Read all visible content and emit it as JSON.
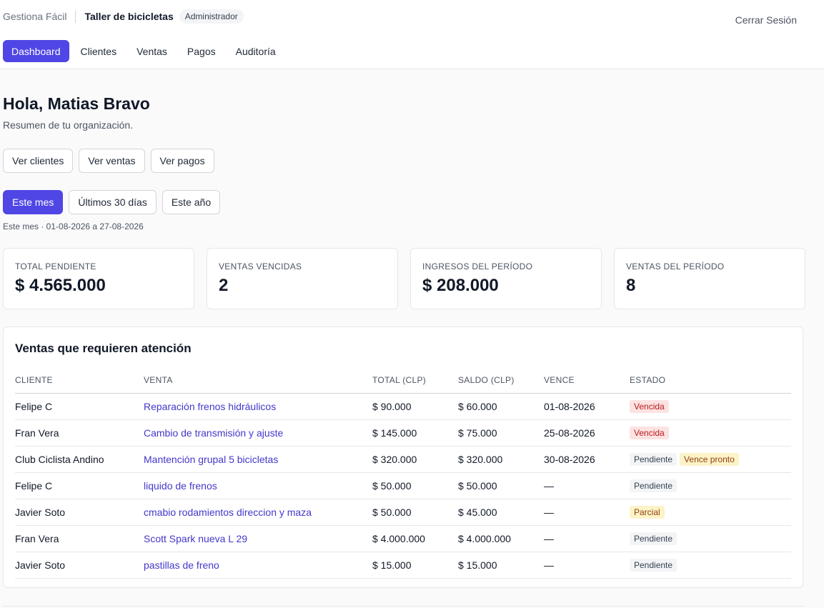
{
  "header": {
    "app_name": "Gestiona Fácil",
    "org_name": "Taller de bicicletas",
    "role": "Administrador",
    "logout": "Cerrar Sesión"
  },
  "nav": {
    "items": [
      {
        "label": "Dashboard",
        "active": true
      },
      {
        "label": "Clientes",
        "active": false
      },
      {
        "label": "Ventas",
        "active": false
      },
      {
        "label": "Pagos",
        "active": false
      },
      {
        "label": "Auditoría",
        "active": false
      }
    ]
  },
  "main": {
    "greeting": "Hola, Matias Bravo",
    "subtitle": "Resumen de tu organización.",
    "quick_links": [
      "Ver clientes",
      "Ver ventas",
      "Ver pagos"
    ],
    "periods": [
      "Este mes",
      "Últimos 30 días",
      "Este año"
    ],
    "selected_period": "Este mes",
    "period_caption": "Este mes · 01-08-2026 a 27-08-2026"
  },
  "kpis": [
    {
      "label": "TOTAL PENDIENTE",
      "value": "$ 4.565.000"
    },
    {
      "label": "VENTAS VENCIDAS",
      "value": "2"
    },
    {
      "label": "INGRESOS DEL PERÍODO",
      "value": "$ 208.000"
    },
    {
      "label": "VENTAS DEL PERÍODO",
      "value": "8"
    }
  ],
  "attention": {
    "title": "Ventas que requieren atención",
    "columns": [
      "CLIENTE",
      "VENTA",
      "TOTAL (CLP)",
      "SALDO (CLP)",
      "VENCE",
      "ESTADO"
    ],
    "rows": [
      {
        "client": "Felipe C",
        "sale": "Reparación frenos hidráulicos",
        "total": "$ 90.000",
        "balance": "$ 60.000",
        "due": "01-08-2026",
        "status": "Vencida",
        "extra": ""
      },
      {
        "client": "Fran Vera",
        "sale": "Cambio de transmisión y ajuste",
        "total": "$ 145.000",
        "balance": "$ 75.000",
        "due": "25-08-2026",
        "status": "Vencida",
        "extra": ""
      },
      {
        "client": "Club Ciclista Andino",
        "sale": "Mantención grupal 5 bicicletas",
        "total": "$ 320.000",
        "balance": "$ 320.000",
        "due": "30-08-2026",
        "status": "Pendiente",
        "extra": "Vence pronto"
      },
      {
        "client": "Felipe C",
        "sale": "liquido de frenos",
        "total": "$ 50.000",
        "balance": "$ 50.000",
        "due": "—",
        "status": "Pendiente",
        "extra": ""
      },
      {
        "client": "Javier Soto",
        "sale": "cmabio rodamientos direccion y maza",
        "total": "$ 50.000",
        "balance": "$ 45.000",
        "due": "—",
        "status": "Parcial",
        "extra": ""
      },
      {
        "client": "Fran Vera",
        "sale": "Scott Spark nueva L 29",
        "total": "$ 4.000.000",
        "balance": "$ 4.000.000",
        "due": "—",
        "status": "Pendiente",
        "extra": ""
      },
      {
        "client": "Javier Soto",
        "sale": "pastillas de freno",
        "total": "$ 15.000",
        "balance": "$ 15.000",
        "due": "—",
        "status": "Pendiente",
        "extra": ""
      }
    ]
  }
}
